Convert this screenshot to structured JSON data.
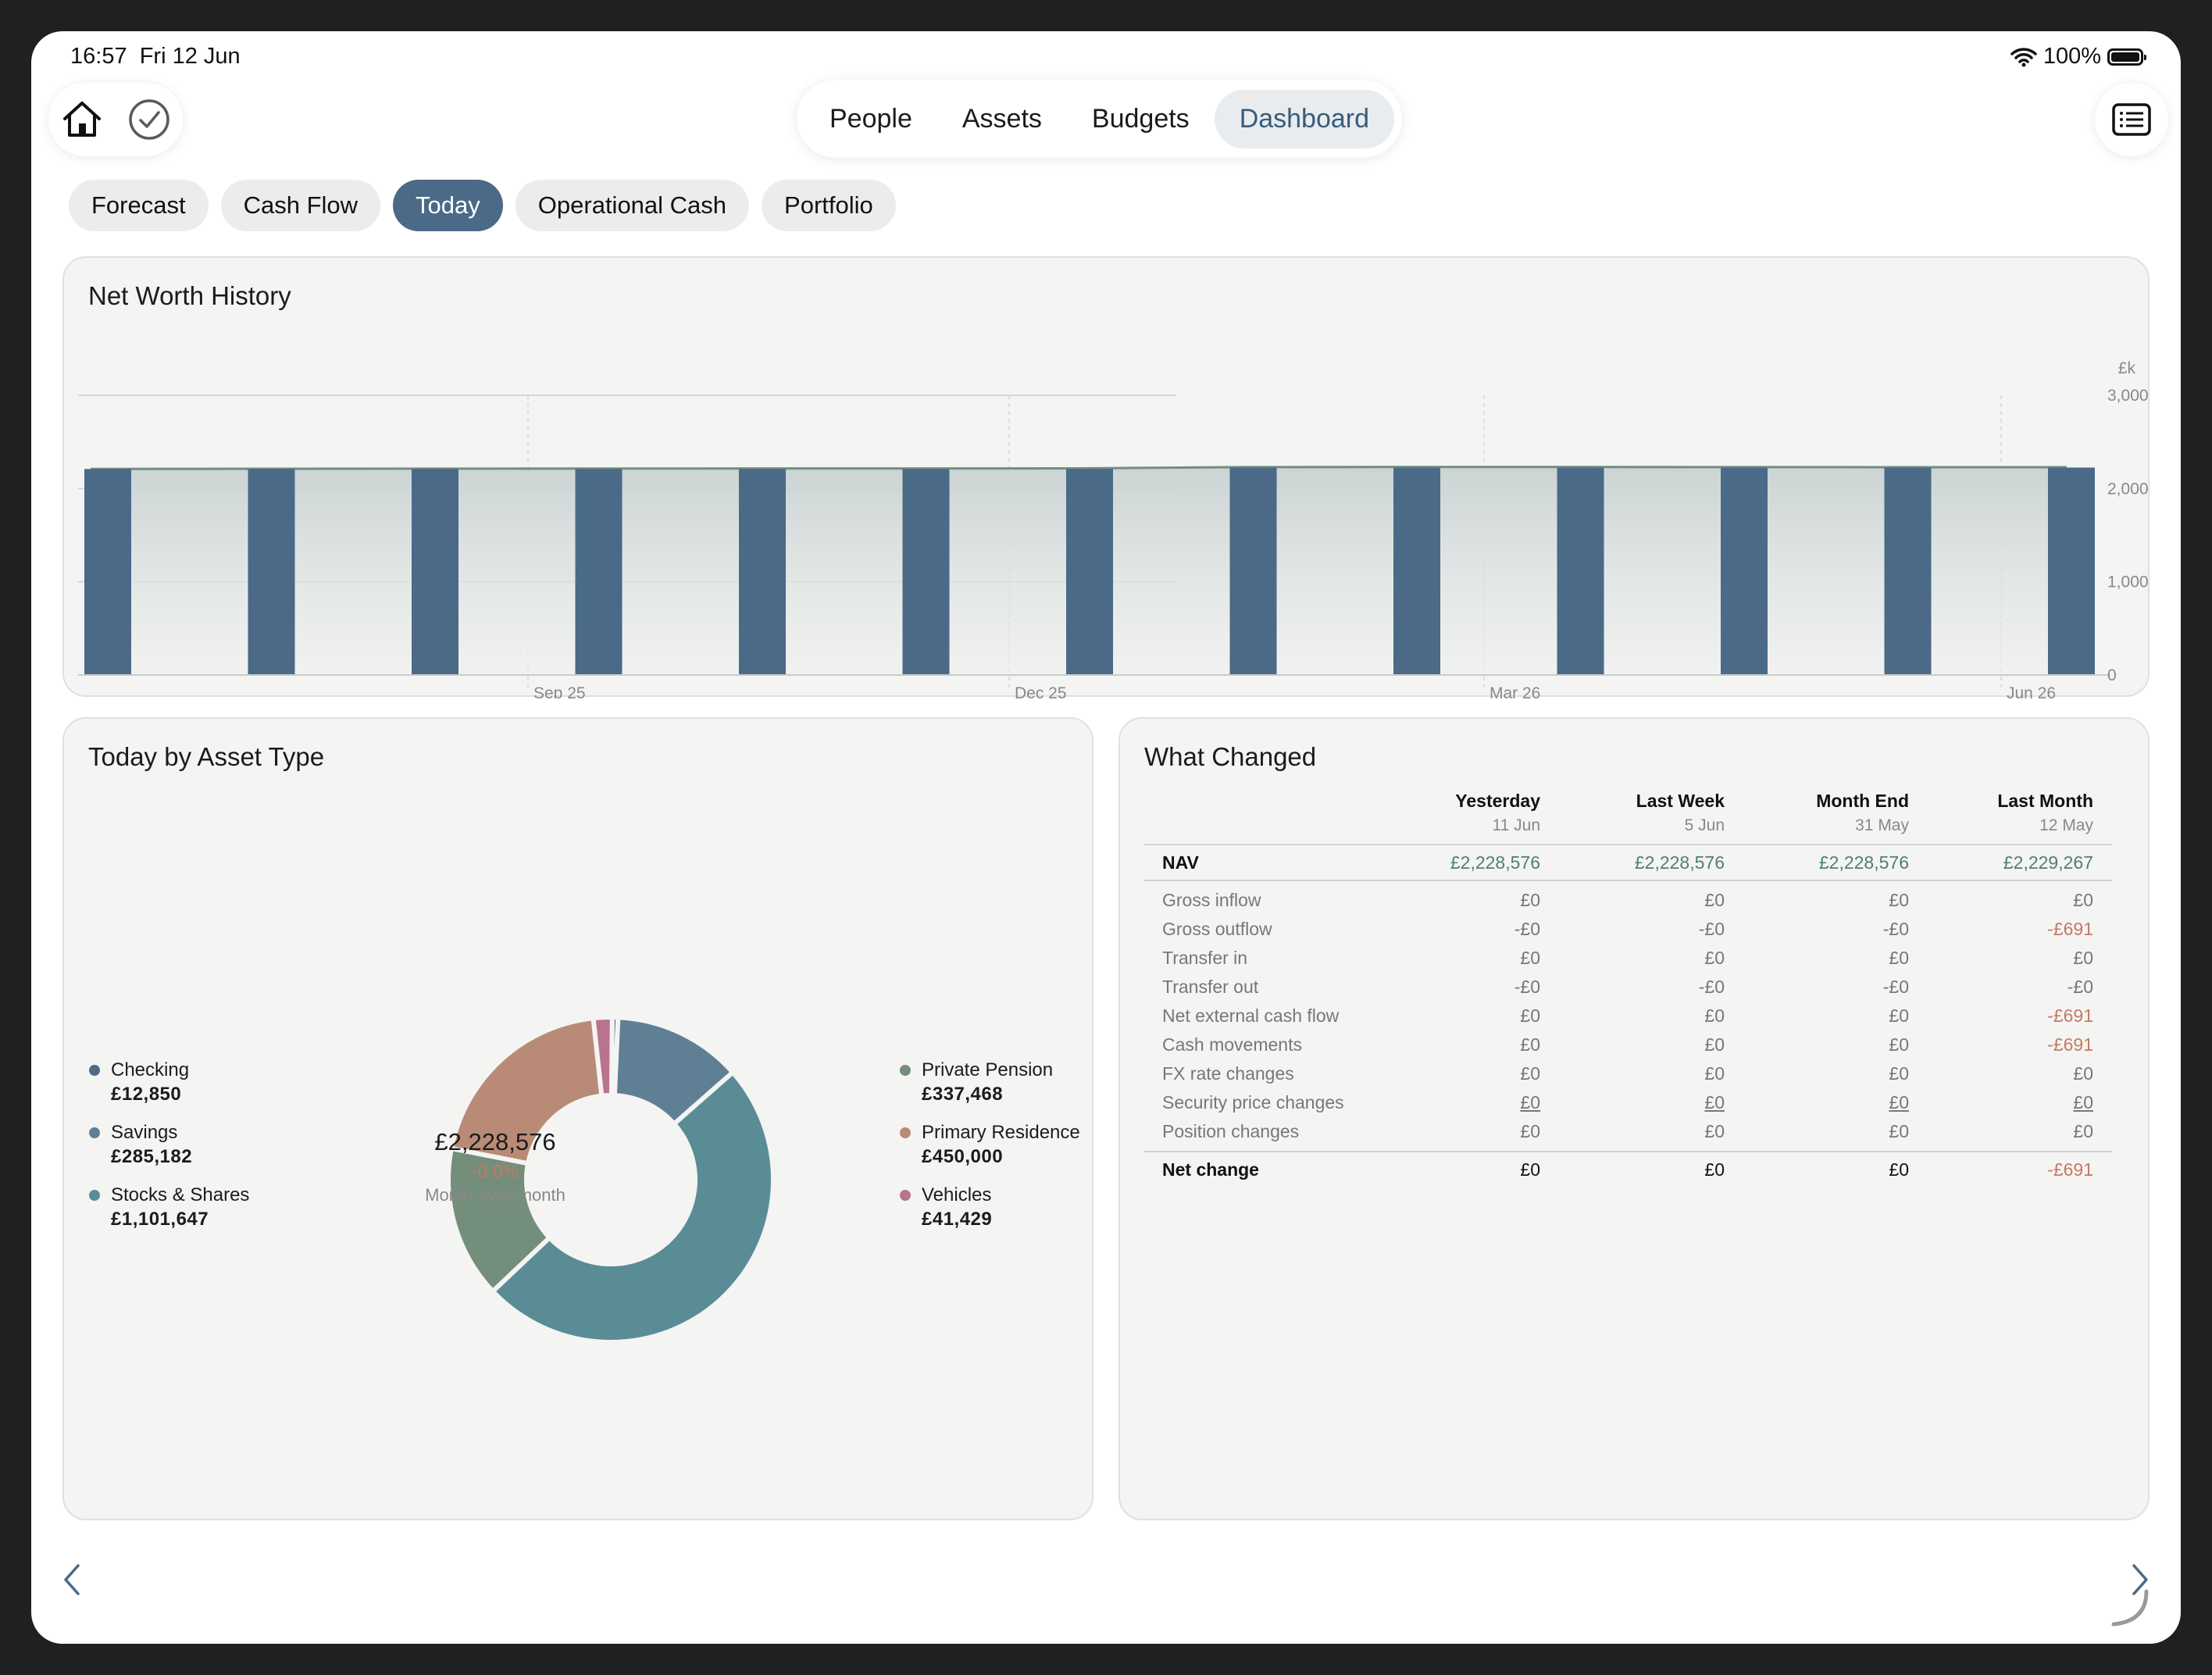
{
  "status_bar": {
    "time": "16:57",
    "date": "Fri 12 Jun",
    "battery": "100%"
  },
  "nav": {
    "tabs": [
      {
        "label": "People",
        "active": false
      },
      {
        "label": "Assets",
        "active": false
      },
      {
        "label": "Budgets",
        "active": false
      },
      {
        "label": "Dashboard",
        "active": true
      }
    ]
  },
  "segments": [
    {
      "label": "Forecast",
      "active": false
    },
    {
      "label": "Cash Flow",
      "active": false
    },
    {
      "label": "Today",
      "active": true
    },
    {
      "label": "Operational Cash",
      "active": false
    },
    {
      "label": "Portfolio",
      "active": false
    }
  ],
  "net_worth": {
    "title": "Net Worth History",
    "unit": "£k"
  },
  "asset_type": {
    "title": "Today by Asset Type",
    "total": "£2,228,576",
    "change": "-0.0%",
    "change_label": "Month-over-month",
    "legend_left": [
      {
        "name": "Checking",
        "value": "£12,850",
        "color": "#4d6b86"
      },
      {
        "name": "Savings",
        "value": "£285,182",
        "color": "#5f7f95"
      },
      {
        "name": "Stocks & Shares",
        "value": "£1,101,647",
        "color": "#5a8c96"
      }
    ],
    "legend_right": [
      {
        "name": "Private Pension",
        "value": "£337,468",
        "color": "#748e7c"
      },
      {
        "name": "Primary Residence",
        "value": "£450,000",
        "color": "#b98b76"
      },
      {
        "name": "Vehicles",
        "value": "£41,429",
        "color": "#b9748c"
      }
    ]
  },
  "what_changed": {
    "title": "What Changed",
    "columns": [
      {
        "name": "Yesterday",
        "date": "11 Jun"
      },
      {
        "name": "Last Week",
        "date": "5 Jun"
      },
      {
        "name": "Month End",
        "date": "31 May"
      },
      {
        "name": "Last Month",
        "date": "12 May"
      }
    ],
    "nav_row": {
      "label": "NAV",
      "values": [
        "£2,228,576",
        "£2,228,576",
        "£2,228,576",
        "£2,229,267"
      ]
    },
    "rows": [
      {
        "label": "Gross inflow",
        "values": [
          "£0",
          "£0",
          "£0",
          "£0"
        ]
      },
      {
        "label": "Gross outflow",
        "values": [
          "-£0",
          "-£0",
          "-£0",
          "-£691"
        ]
      },
      {
        "label": "Transfer in",
        "values": [
          "£0",
          "£0",
          "£0",
          "£0"
        ]
      },
      {
        "label": "Transfer out",
        "values": [
          "-£0",
          "-£0",
          "-£0",
          "-£0"
        ]
      },
      {
        "label": "Net external cash flow",
        "values": [
          "£0",
          "£0",
          "£0",
          "-£691"
        ]
      },
      {
        "label": "Cash movements",
        "values": [
          "£0",
          "£0",
          "£0",
          "-£691"
        ]
      },
      {
        "label": "FX rate changes",
        "values": [
          "£0",
          "£0",
          "£0",
          "£0"
        ]
      },
      {
        "label": "Security price changes",
        "values": [
          "£0",
          "£0",
          "£0",
          "£0"
        ]
      },
      {
        "label": "Position changes",
        "values": [
          "£0",
          "£0",
          "£0",
          "£0"
        ]
      }
    ],
    "net_row": {
      "label": "Net change",
      "values": [
        "£0",
        "£0",
        "£0",
        "-£691"
      ]
    }
  },
  "chart_data": [
    {
      "type": "bar",
      "title": "Net Worth History",
      "ylabel": "£k",
      "ylim": [
        0,
        3000
      ],
      "yticks": [
        "3,000",
        "2,000",
        "1,000",
        "0"
      ],
      "xticks": [
        "Sep 25",
        "Dec 25",
        "Mar 26",
        "Jun 26"
      ],
      "grid": true,
      "series": [
        {
          "values": [
            2210,
            2210,
            2210,
            2210,
            2210,
            2210,
            2210,
            2225,
            2225,
            2225,
            2225,
            2225,
            2225
          ]
        }
      ],
      "line_values": [
        2210,
        2212,
        2213,
        2214,
        2215,
        2215,
        2216,
        2230,
        2231,
        2231,
        2230,
        2229,
        2229
      ]
    },
    {
      "type": "pie",
      "title": "Today by Asset Type",
      "categories": [
        "Checking",
        "Savings",
        "Stocks & Shares",
        "Private Pension",
        "Primary Residence",
        "Vehicles"
      ],
      "values": [
        12850,
        285182,
        1101647,
        337468,
        450000,
        41429
      ],
      "colors": [
        "#4d6b86",
        "#5f7f95",
        "#5a8c96",
        "#748e7c",
        "#b98b76",
        "#b9748c"
      ]
    }
  ]
}
